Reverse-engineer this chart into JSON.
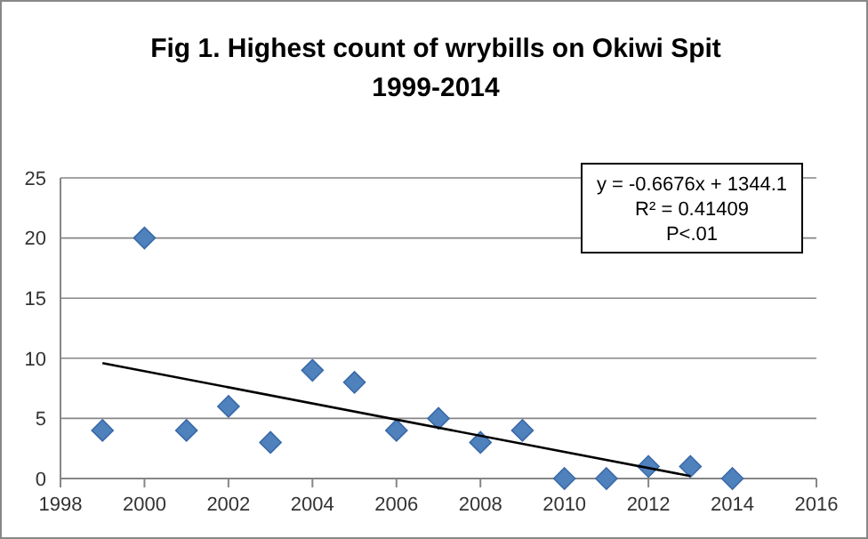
{
  "chart_data": {
    "type": "scatter",
    "title": "Fig 1. Highest count of wrybills on Okiwi Spit\n1999-2014",
    "x": [
      1999,
      2000,
      2001,
      2002,
      2003,
      2004,
      2005,
      2006,
      2007,
      2008,
      2009,
      2010,
      2011,
      2012,
      2013,
      2014
    ],
    "series": [
      {
        "color": "#4f81bd",
        "marker": "diamond",
        "values": [
          4,
          20,
          4,
          6,
          3,
          9,
          8,
          4,
          5,
          3,
          4,
          0,
          0,
          1,
          1,
          0
        ]
      },
      {
        "type": "line",
        "color": "#000000",
        "marker": "none",
        "line_style": "solid",
        "x": [
          1999,
          2013
        ],
        "values": [
          9.6,
          0.2
        ]
      }
    ],
    "xlim": [
      1998,
      2016
    ],
    "xticks": [
      1998,
      2000,
      2002,
      2004,
      2006,
      2008,
      2010,
      2012,
      2014,
      2016
    ],
    "ylim": [
      0,
      25
    ],
    "yticks": [
      0,
      5,
      10,
      15,
      20,
      25
    ],
    "grid": "y",
    "annotations": [
      "y = -0.6676x + 1344.1",
      "R² = 0.41409",
      "P<.01"
    ]
  }
}
